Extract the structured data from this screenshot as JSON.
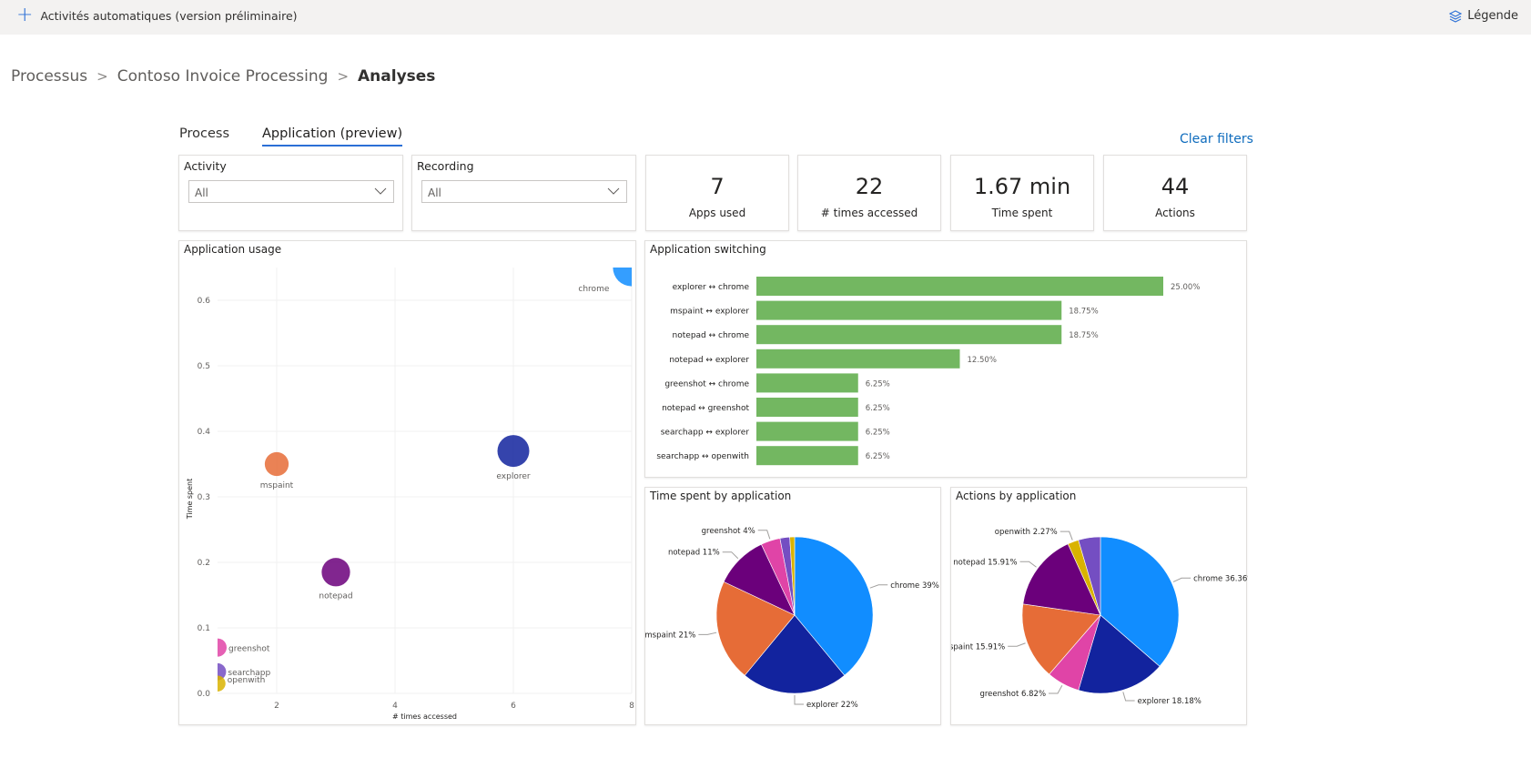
{
  "topbar": {
    "add_label": "Activités automatiques (version préliminaire)",
    "legend_label": "Légende"
  },
  "breadcrumb": [
    "Processus",
    "Contoso Invoice Processing",
    "Analyses"
  ],
  "tabs": [
    "Process",
    "Application (preview)"
  ],
  "clear_filters": "Clear filters",
  "filters": [
    {
      "label": "Activity",
      "value": "All"
    },
    {
      "label": "Recording",
      "value": "All"
    }
  ],
  "kpis": [
    {
      "value": "7",
      "label": "Apps used"
    },
    {
      "value": "22",
      "label": "# times accessed"
    },
    {
      "value": "1.67 min",
      "label": "Time spent"
    },
    {
      "value": "44",
      "label": "Actions"
    }
  ],
  "colors": {
    "accent": "#2b6fd6",
    "bar": "#73b761"
  },
  "chart_data": [
    {
      "type": "scatter",
      "title": "Application usage",
      "xlabel": "# times accessed",
      "ylabel": "Time spent",
      "xlim": [
        1,
        8
      ],
      "ylim": [
        0,
        0.65
      ],
      "xticks": [
        2,
        4,
        6,
        8
      ],
      "yticks": [
        0.0,
        0.1,
        0.2,
        0.3,
        0.4,
        0.5,
        0.6
      ],
      "points": [
        {
          "name": "chrome",
          "x": 8,
          "y": 0.65,
          "size": 33,
          "color": "#118dff"
        },
        {
          "name": "explorer",
          "x": 6,
          "y": 0.37,
          "size": 28,
          "color": "#12239e"
        },
        {
          "name": "mspaint",
          "x": 2,
          "y": 0.35,
          "size": 21,
          "color": "#e66c37"
        },
        {
          "name": "notepad",
          "x": 3,
          "y": 0.185,
          "size": 25,
          "color": "#6b007b"
        },
        {
          "name": "greenshot",
          "x": 1,
          "y": 0.07,
          "size": 16,
          "color": "#e044a7"
        },
        {
          "name": "searchapp",
          "x": 1,
          "y": 0.033,
          "size": 15,
          "color": "#744ec2"
        },
        {
          "name": "openwith",
          "x": 1,
          "y": 0.015,
          "size": 14,
          "color": "#d9b300"
        }
      ]
    },
    {
      "type": "bar",
      "title": "Application switching",
      "categories": [
        "explorer ↔ chrome",
        "mspaint ↔ explorer",
        "notepad ↔ chrome",
        "notepad ↔ explorer",
        "greenshot ↔ chrome",
        "notepad ↔ greenshot",
        "searchapp ↔ explorer",
        "searchapp ↔ openwith"
      ],
      "values": [
        25.0,
        18.75,
        18.75,
        12.5,
        6.25,
        6.25,
        6.25,
        6.25
      ],
      "labels": [
        "25.00%",
        "18.75%",
        "18.75%",
        "12.50%",
        "6.25%",
        "6.25%",
        "6.25%",
        "6.25%"
      ]
    },
    {
      "type": "pie",
      "title": "Time spent by application",
      "slices": [
        {
          "name": "chrome",
          "value": 39,
          "label": "chrome 39%",
          "color": "#118dff"
        },
        {
          "name": "explorer",
          "value": 22,
          "label": "explorer 22%",
          "color": "#12239e"
        },
        {
          "name": "mspaint",
          "value": 21,
          "label": "mspaint 21%",
          "color": "#e66c37"
        },
        {
          "name": "notepad",
          "value": 11,
          "label": "notepad 11%",
          "color": "#6b007b"
        },
        {
          "name": "greenshot",
          "value": 4,
          "label": "greenshot 4%",
          "color": "#e044a7"
        },
        {
          "name": "searchapp",
          "value": 2,
          "label": "",
          "color": "#744ec2"
        },
        {
          "name": "openwith",
          "value": 1,
          "label": "",
          "color": "#d9b300"
        }
      ]
    },
    {
      "type": "pie",
      "title": "Actions by application",
      "slices": [
        {
          "name": "chrome",
          "value": 36.36,
          "label": "chrome 36.36%",
          "color": "#118dff"
        },
        {
          "name": "explorer",
          "value": 18.18,
          "label": "explorer 18.18%",
          "color": "#12239e"
        },
        {
          "name": "greenshot",
          "value": 6.82,
          "label": "greenshot 6.82%",
          "color": "#e044a7"
        },
        {
          "name": "mspaint",
          "value": 15.91,
          "label": "mspaint 15.91%",
          "color": "#e66c37"
        },
        {
          "name": "notepad",
          "value": 15.91,
          "label": "notepad 15.91%",
          "color": "#6b007b"
        },
        {
          "name": "openwith",
          "value": 2.27,
          "label": "openwith 2.27%",
          "color": "#d9b300"
        },
        {
          "name": "searchapp",
          "value": 4.55,
          "label": "",
          "color": "#744ec2"
        }
      ]
    }
  ]
}
